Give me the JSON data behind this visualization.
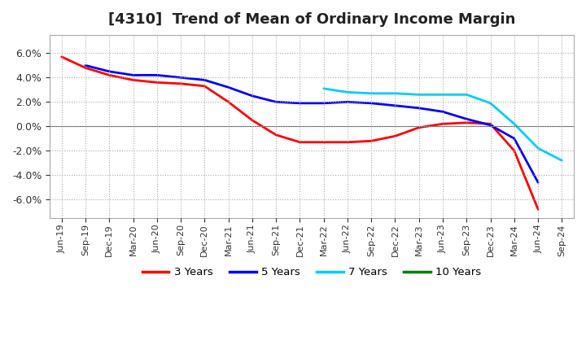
{
  "title": "[4310]  Trend of Mean of Ordinary Income Margin",
  "title_fontsize": 13,
  "background_color": "#ffffff",
  "plot_bg_color": "#ffffff",
  "grid_color": "#aaaaaa",
  "ylim": [
    -0.075,
    0.075
  ],
  "yticks": [
    -0.06,
    -0.04,
    -0.02,
    0.0,
    0.02,
    0.04,
    0.06
  ],
  "x_labels": [
    "Jun-19",
    "Sep-19",
    "Dec-19",
    "Mar-20",
    "Jun-20",
    "Sep-20",
    "Dec-20",
    "Mar-21",
    "Jun-21",
    "Sep-21",
    "Dec-21",
    "Mar-22",
    "Jun-22",
    "Sep-22",
    "Dec-22",
    "Mar-23",
    "Jun-23",
    "Sep-23",
    "Dec-23",
    "Mar-24",
    "Jun-24",
    "Sep-24"
  ],
  "series": {
    "3 Years": {
      "color": "#ff0000",
      "data_x": [
        0,
        1,
        2,
        3,
        4,
        5,
        6,
        7,
        8,
        9,
        10,
        11,
        12,
        13,
        14,
        15,
        16,
        17,
        18,
        19,
        20
      ],
      "data_y": [
        0.057,
        0.048,
        0.042,
        0.038,
        0.036,
        0.035,
        0.033,
        0.02,
        0.005,
        -0.007,
        -0.013,
        -0.013,
        -0.013,
        -0.012,
        -0.008,
        -0.001,
        0.002,
        0.003,
        0.002,
        -0.02,
        -0.068
      ]
    },
    "5 Years": {
      "color": "#0000ff",
      "data_x": [
        1,
        2,
        3,
        4,
        5,
        6,
        7,
        8,
        9,
        10,
        11,
        12,
        13,
        14,
        15,
        16,
        17,
        18,
        19,
        20
      ],
      "data_y": [
        0.05,
        0.045,
        0.042,
        0.042,
        0.04,
        0.038,
        0.032,
        0.025,
        0.02,
        0.019,
        0.019,
        0.02,
        0.019,
        0.017,
        0.015,
        0.012,
        0.006,
        0.001,
        -0.01,
        -0.046
      ]
    },
    "7 Years": {
      "color": "#00ccff",
      "data_x": [
        11,
        12,
        13,
        14,
        15,
        16,
        17,
        18,
        19,
        20,
        21
      ],
      "data_y": [
        0.031,
        0.028,
        0.027,
        0.027,
        0.026,
        0.026,
        0.026,
        0.019,
        0.002,
        -0.018,
        -0.028
      ]
    },
    "10 Years": {
      "color": "#008000",
      "data_x": [],
      "data_y": []
    }
  },
  "legend_labels": [
    "3 Years",
    "5 Years",
    "7 Years",
    "10 Years"
  ],
  "legend_colors": [
    "#ff0000",
    "#0000ff",
    "#00ccff",
    "#008000"
  ]
}
